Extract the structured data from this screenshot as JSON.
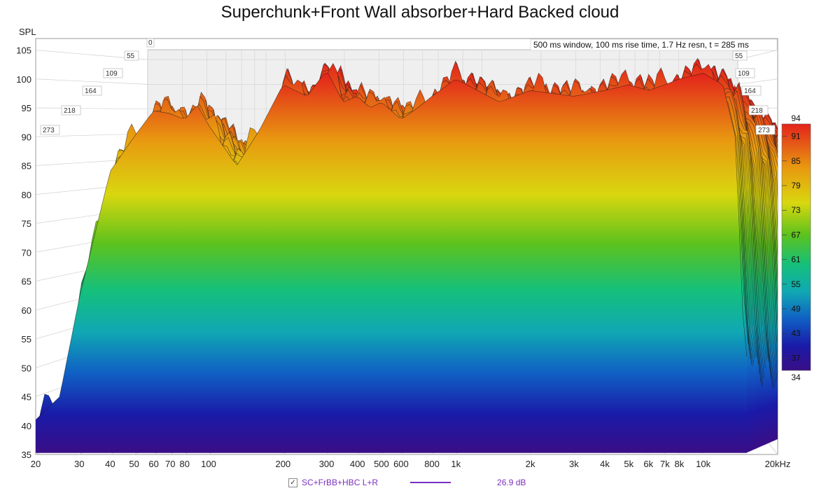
{
  "chart_data": {
    "type": "area",
    "title": "Superchunk+Front Wall absorber+Hard Backed cloud",
    "ylabel": "SPL",
    "xlabel": "",
    "x_scale": "log",
    "xlim": [
      20,
      20000
    ],
    "ylim": [
      35,
      107
    ],
    "x_ticks": [
      {
        "v": 20,
        "label": "20"
      },
      {
        "v": 30,
        "label": "30"
      },
      {
        "v": 40,
        "label": "40"
      },
      {
        "v": 50,
        "label": "50"
      },
      {
        "v": 60,
        "label": "60"
      },
      {
        "v": 70,
        "label": "70"
      },
      {
        "v": 80,
        "label": "80"
      },
      {
        "v": 100,
        "label": "100"
      },
      {
        "v": 200,
        "label": "200"
      },
      {
        "v": 300,
        "label": "300"
      },
      {
        "v": 400,
        "label": "400"
      },
      {
        "v": 500,
        "label": "500"
      },
      {
        "v": 600,
        "label": "600"
      },
      {
        "v": 800,
        "label": "800"
      },
      {
        "v": 1000,
        "label": "1k"
      },
      {
        "v": 2000,
        "label": "2k"
      },
      {
        "v": 3000,
        "label": "3k"
      },
      {
        "v": 4000,
        "label": "4k"
      },
      {
        "v": 5000,
        "label": "5k"
      },
      {
        "v": 6000,
        "label": "6k"
      },
      {
        "v": 7000,
        "label": "7k"
      },
      {
        "v": 8000,
        "label": "8k"
      },
      {
        "v": 10000,
        "label": "10k"
      },
      {
        "v": 20000,
        "label": "20kHz"
      }
    ],
    "y_ticks": [
      35,
      40,
      45,
      50,
      55,
      60,
      65,
      70,
      75,
      80,
      85,
      90,
      95,
      100,
      105
    ],
    "time_axis_label": "0",
    "time_ticks_ms": [
      "55",
      "109",
      "164",
      "218",
      "273"
    ],
    "colorbar": {
      "min": 34,
      "max": 94,
      "labels": [
        "94",
        "91",
        "85",
        "79",
        "73",
        "67",
        "61",
        "55",
        "49",
        "43",
        "37",
        "34"
      ]
    },
    "info": "500 ms window, 100 ms rise time,  1.7 Hz resn, t = 285 ms",
    "series": [
      {
        "name": "SC+FrBB+HBC L+R",
        "value_label": "26.9 dB",
        "color": "#7a2fbf",
        "front_slice_peak_profile": [
          [
            20,
            41
          ],
          [
            25,
            45
          ],
          [
            30,
            62
          ],
          [
            40,
            84
          ],
          [
            50,
            90
          ],
          [
            60,
            94.5
          ],
          [
            70,
            94
          ],
          [
            80,
            93
          ],
          [
            90,
            95.5
          ],
          [
            100,
            92
          ],
          [
            130,
            85
          ],
          [
            160,
            91
          ],
          [
            200,
            99
          ],
          [
            250,
            97
          ],
          [
            300,
            101.5
          ],
          [
            350,
            96
          ],
          [
            400,
            97
          ],
          [
            450,
            95
          ],
          [
            500,
            96
          ],
          [
            600,
            93
          ],
          [
            700,
            95
          ],
          [
            800,
            97
          ],
          [
            1000,
            100
          ],
          [
            1500,
            96
          ],
          [
            2000,
            98
          ],
          [
            3000,
            97
          ],
          [
            4000,
            98
          ],
          [
            5000,
            99
          ],
          [
            6000,
            98
          ],
          [
            7000,
            99
          ],
          [
            8000,
            100
          ],
          [
            10000,
            101
          ],
          [
            12000,
            99
          ],
          [
            13500,
            90
          ],
          [
            14500,
            58
          ],
          [
            15000,
            52
          ]
        ]
      }
    ]
  },
  "legend": {
    "checkbox": "✓",
    "series_label": "SC+FrBB+HBC L+R",
    "value_label": "26.9 dB"
  }
}
